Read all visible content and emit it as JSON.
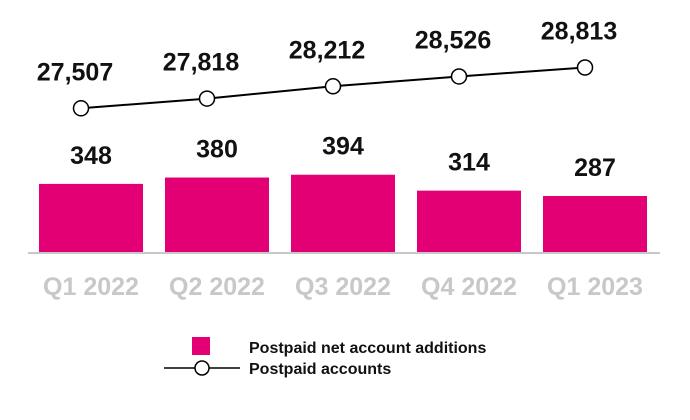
{
  "chart_data": {
    "type": "bar",
    "categories": [
      "Q1 2022",
      "Q2 2022",
      "Q3 2022",
      "Q4 2022",
      "Q1 2023"
    ],
    "series": [
      {
        "name": "Postpaid net account additions",
        "type": "bar",
        "values": [
          348,
          380,
          394,
          314,
          287
        ],
        "labels": [
          "348",
          "380",
          "394",
          "314",
          "287"
        ]
      },
      {
        "name": "Postpaid accounts",
        "type": "line",
        "values": [
          27507,
          27818,
          28212,
          28526,
          28813
        ],
        "labels": [
          "27,507",
          "27,818",
          "28,212",
          "28,526",
          "28,813"
        ]
      }
    ],
    "legend_position": "bottom-center",
    "grid": false
  },
  "colors": {
    "bar": "#e20074",
    "line": "#000000",
    "axis": "#c8c8c8",
    "category_label": "#c8c8c8",
    "value_label": "#111111"
  }
}
